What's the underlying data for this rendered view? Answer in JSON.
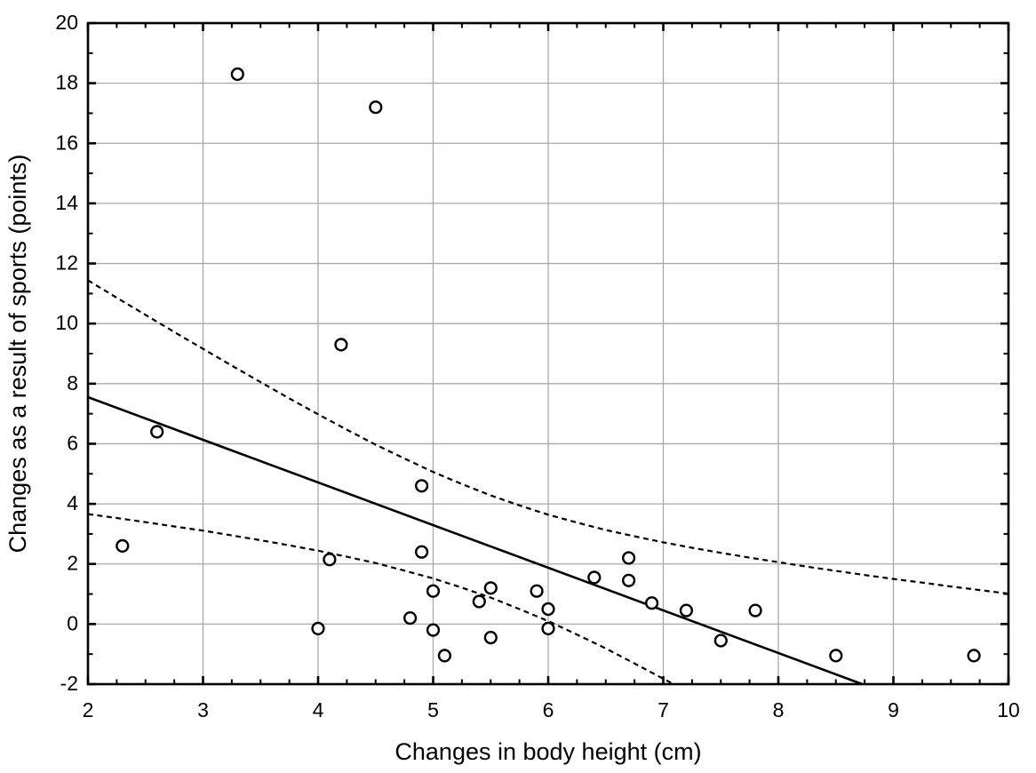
{
  "chart_data": {
    "type": "scatter",
    "title": "",
    "xlabel": "Changes in body height (cm)",
    "ylabel": "Changes as a result of sports (points)",
    "xlim": [
      2,
      10
    ],
    "ylim": [
      -2,
      20
    ],
    "grid": true,
    "x_axis": {
      "major_ticks": [
        2,
        3,
        4,
        5,
        6,
        7,
        8,
        9,
        10
      ],
      "minor_step": 0.25,
      "gridline_values": [
        3,
        4,
        5,
        6,
        7,
        8,
        9
      ]
    },
    "y_axis": {
      "major_ticks": [
        -2,
        0,
        2,
        4,
        6,
        8,
        10,
        12,
        14,
        16,
        18,
        20
      ],
      "minor_step": 1,
      "gridline_values": [
        0,
        2,
        4,
        6,
        8,
        10,
        12,
        14,
        16,
        18
      ]
    },
    "marker": {
      "shape": "open-circle",
      "stroke": "#000000",
      "fill": "#ffffff"
    },
    "n_points": 28,
    "points": [
      [
        2.3,
        2.6
      ],
      [
        2.6,
        6.4
      ],
      [
        3.3,
        18.3
      ],
      [
        4.0,
        -0.15
      ],
      [
        4.1,
        2.15
      ],
      [
        4.2,
        9.3
      ],
      [
        4.5,
        17.2
      ],
      [
        4.8,
        0.2
      ],
      [
        4.9,
        4.6
      ],
      [
        4.9,
        2.4
      ],
      [
        5.0,
        1.1
      ],
      [
        5.0,
        -0.2
      ],
      [
        5.1,
        -1.05
      ],
      [
        5.4,
        0.75
      ],
      [
        5.5,
        1.2
      ],
      [
        5.5,
        -0.45
      ],
      [
        5.9,
        1.1
      ],
      [
        6.0,
        0.5
      ],
      [
        6.0,
        -0.15
      ],
      [
        6.4,
        1.55
      ],
      [
        6.7,
        2.2
      ],
      [
        6.7,
        1.45
      ],
      [
        6.9,
        0.7
      ],
      [
        7.2,
        0.45
      ],
      [
        7.5,
        -0.55
      ],
      [
        7.8,
        0.45
      ],
      [
        8.5,
        -1.05
      ],
      [
        9.7,
        -1.05
      ]
    ],
    "regression_line": {
      "style": "solid",
      "points": [
        [
          2,
          7.55
        ],
        [
          8.73,
          -2
        ]
      ]
    },
    "confidence_band_upper": {
      "style": "dashed",
      "points": [
        [
          2,
          11.44
        ],
        [
          2.25,
          10.86
        ],
        [
          2.5,
          10.29
        ],
        [
          2.75,
          9.72
        ],
        [
          3,
          9.16
        ],
        [
          3.25,
          8.6
        ],
        [
          3.5,
          8.05
        ],
        [
          3.75,
          7.51
        ],
        [
          4,
          6.98
        ],
        [
          4.25,
          6.47
        ],
        [
          4.5,
          5.97
        ],
        [
          4.75,
          5.51
        ],
        [
          5,
          5.06
        ],
        [
          5.25,
          4.66
        ],
        [
          5.5,
          4.28
        ],
        [
          5.75,
          3.95
        ],
        [
          6,
          3.64
        ],
        [
          6.25,
          3.38
        ],
        [
          6.5,
          3.13
        ],
        [
          6.75,
          2.92
        ],
        [
          7,
          2.72
        ],
        [
          7.25,
          2.54
        ],
        [
          7.5,
          2.37
        ],
        [
          7.75,
          2.21
        ],
        [
          8,
          2.06
        ],
        [
          8.25,
          1.91
        ],
        [
          8.5,
          1.77
        ],
        [
          8.75,
          1.63
        ],
        [
          9,
          1.5
        ],
        [
          9.25,
          1.38
        ],
        [
          9.5,
          1.25
        ],
        [
          9.75,
          1.13
        ],
        [
          10,
          1.01
        ]
      ]
    },
    "confidence_band_lower": {
      "style": "dashed",
      "points": [
        [
          2,
          3.66
        ],
        [
          2.25,
          3.53
        ],
        [
          2.5,
          3.39
        ],
        [
          2.75,
          3.25
        ],
        [
          3,
          3.11
        ],
        [
          3.25,
          2.95
        ],
        [
          3.5,
          2.79
        ],
        [
          3.75,
          2.62
        ],
        [
          4,
          2.44
        ],
        [
          4.25,
          2.24
        ],
        [
          4.5,
          2.03
        ],
        [
          4.75,
          1.78
        ],
        [
          5,
          1.52
        ],
        [
          5.25,
          1.21
        ],
        [
          5.5,
          0.88
        ],
        [
          5.75,
          0.5
        ],
        [
          6,
          0.1
        ],
        [
          6.25,
          -0.35
        ],
        [
          6.5,
          -0.81
        ],
        [
          6.75,
          -1.31
        ],
        [
          7,
          -1.82
        ],
        [
          7.09,
          -2
        ]
      ]
    },
    "colors": {
      "axis": "#000000",
      "grid": "#a9a9a9",
      "line": "#000000",
      "background": "#ffffff"
    }
  }
}
